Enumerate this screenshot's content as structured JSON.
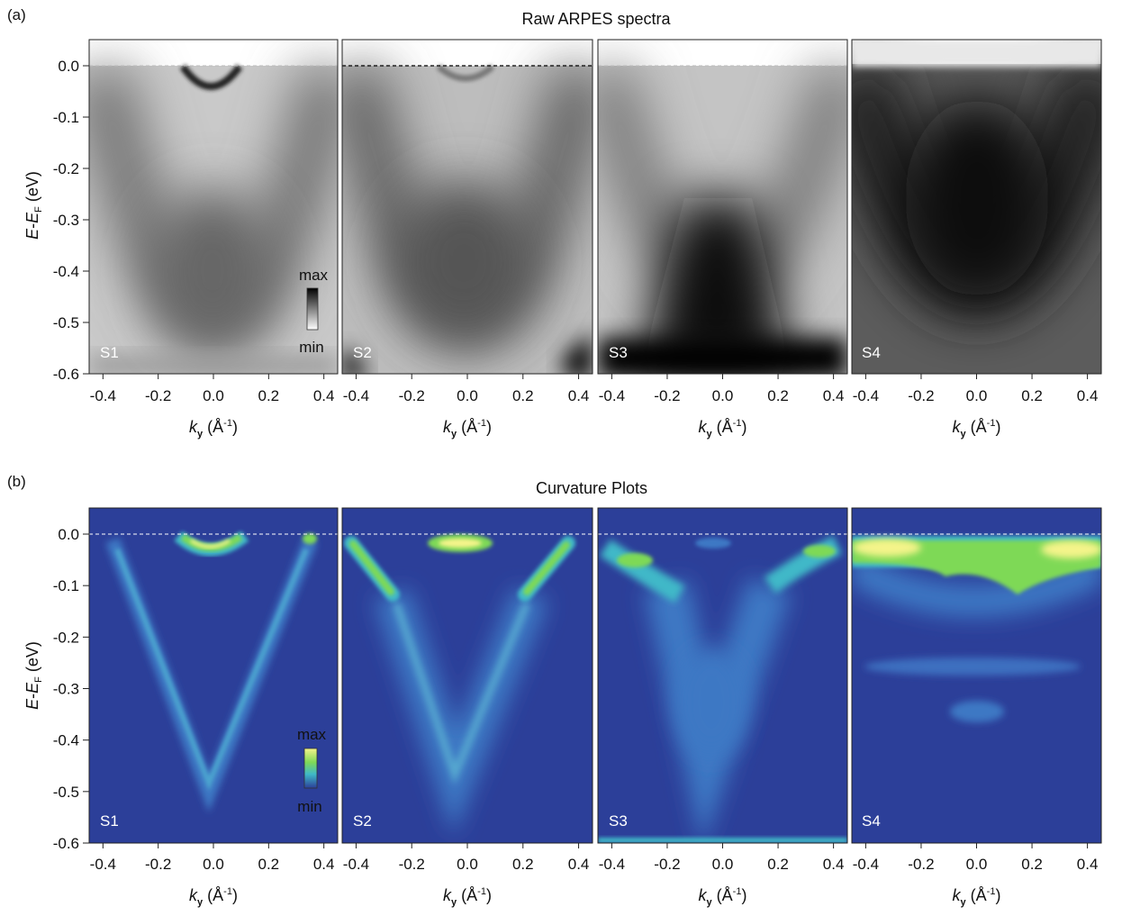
{
  "panel_labels": [
    "(a)",
    "(b)"
  ],
  "titles": [
    "Raw ARPES spectra",
    "Curvature Plots"
  ],
  "ylabel": {
    "pre": "E",
    "dash": "-",
    "main": "E",
    "sub": "F",
    "unit": " (eV)"
  },
  "xlabel": {
    "main": "k",
    "sub": "y",
    "unit_open": " (Å",
    "sup": "-1",
    "unit_close": ")"
  },
  "colorbar": {
    "max_label": "max",
    "min_label": "min"
  },
  "sample_labels": [
    "S1",
    "S2",
    "S3",
    "S4"
  ],
  "colors": {
    "raw_background": "#ffffff",
    "raw_band": "#000000",
    "curv_background": "#2c3f99",
    "curv_low": "#3c6fc0",
    "curv_mid": "#3fb8c8",
    "curv_high": "#7ed957",
    "curv_max": "#f4f48a",
    "fermi_line_raw": "#000000",
    "fermi_line_curv": "#ffffff"
  },
  "chart_data": [
    {
      "type": "heatmap",
      "panel": "(a)",
      "title": "Raw ARPES spectra",
      "xlabel": "ky (Å-1)",
      "ylabel": "E-EF (eV)",
      "xlim": [
        -0.45,
        0.45
      ],
      "ylim": [
        -0.6,
        0.05
      ],
      "xticks": [
        -0.4,
        -0.2,
        0.0,
        0.2,
        0.4
      ],
      "xtick_labels": [
        "-0.4",
        "-0.2",
        "0.0",
        "0.2",
        "0.4"
      ],
      "yticks": [
        0.0,
        -0.1,
        -0.2,
        -0.3,
        -0.4,
        -0.5,
        -0.6
      ],
      "ytick_labels": [
        "0.0",
        "-0.1",
        "-0.2",
        "-0.3",
        "-0.4",
        "-0.5",
        "-0.6"
      ],
      "colormap": "grayscale (white=min, black=max)",
      "fermi_level": 0.0,
      "subplots": [
        {
          "label": "S1",
          "band_bottom_eV": -0.45,
          "electron_pocket": {
            "k_halfwidth": 0.1,
            "bottom_eV": -0.035
          },
          "vhalf_k_at_Ef": 0.36
        },
        {
          "label": "S2",
          "band_bottom_eV": -0.42,
          "electron_pocket": {
            "k_halfwidth": 0.1,
            "bottom_eV": -0.025
          },
          "vhalf_k_at_Ef": 0.36
        },
        {
          "label": "S3",
          "band_bottom_eV": -0.45,
          "vhalf_k_at_Ef": 0.38
        },
        {
          "label": "S4",
          "band_bottom_eV": -0.35,
          "vhalf_k_at_Ef": 0.42
        }
      ]
    },
    {
      "type": "heatmap",
      "panel": "(b)",
      "title": "Curvature Plots",
      "xlabel": "ky (Å-1)",
      "ylabel": "E-EF (eV)",
      "xlim": [
        -0.45,
        0.45
      ],
      "ylim": [
        -0.6,
        0.05
      ],
      "xticks": [
        -0.4,
        -0.2,
        0.0,
        0.2,
        0.4
      ],
      "xtick_labels": [
        "-0.4",
        "-0.2",
        "0.0",
        "0.2",
        "0.4"
      ],
      "yticks": [
        0.0,
        -0.1,
        -0.2,
        -0.3,
        -0.4,
        -0.5,
        -0.6
      ],
      "ytick_labels": [
        "0.0",
        "-0.1",
        "-0.2",
        "-0.3",
        "-0.4",
        "-0.5",
        "-0.6"
      ],
      "colormap": "blue-green-yellow (dark blue=min, yellow=max)",
      "fermi_level": 0.0,
      "subplots": [
        {
          "label": "S1",
          "v_band": {
            "vertex_k": -0.02,
            "vertex_E": -0.5,
            "k_at_Ef": [
              -0.32,
              0.35
            ]
          },
          "electron_pocket": {
            "k_halfwidth": 0.12,
            "bottom_eV": -0.04
          }
        },
        {
          "label": "S2",
          "v_band": {
            "vertex_k": -0.05,
            "vertex_E": -0.48,
            "k_at_Ef": [
              -0.4,
              0.38
            ]
          },
          "electron_pocket": {
            "k_halfwidth": 0.1,
            "bottom_eV": -0.02
          },
          "bright_segments": [
            [
              -0.42,
              -0.02,
              -0.28,
              -0.11
            ],
            [
              0.22,
              -0.11,
              0.38,
              -0.02
            ]
          ]
        },
        {
          "label": "S3",
          "v_band": {
            "vertex_k": -0.05,
            "vertex_E": -0.47,
            "k_at_Ef": [
              -0.42,
              0.4
            ]
          },
          "bright_segments": [
            [
              -0.4,
              -0.03,
              -0.2,
              -0.1
            ],
            [
              0.2,
              -0.08,
              0.38,
              -0.02
            ]
          ]
        },
        {
          "label": "S4",
          "flat_band_eV": -0.03,
          "broad_feature_eV": [
            -0.01,
            -0.1
          ],
          "weak_features_eV": [
            -0.27,
            -0.33
          ]
        }
      ]
    }
  ]
}
